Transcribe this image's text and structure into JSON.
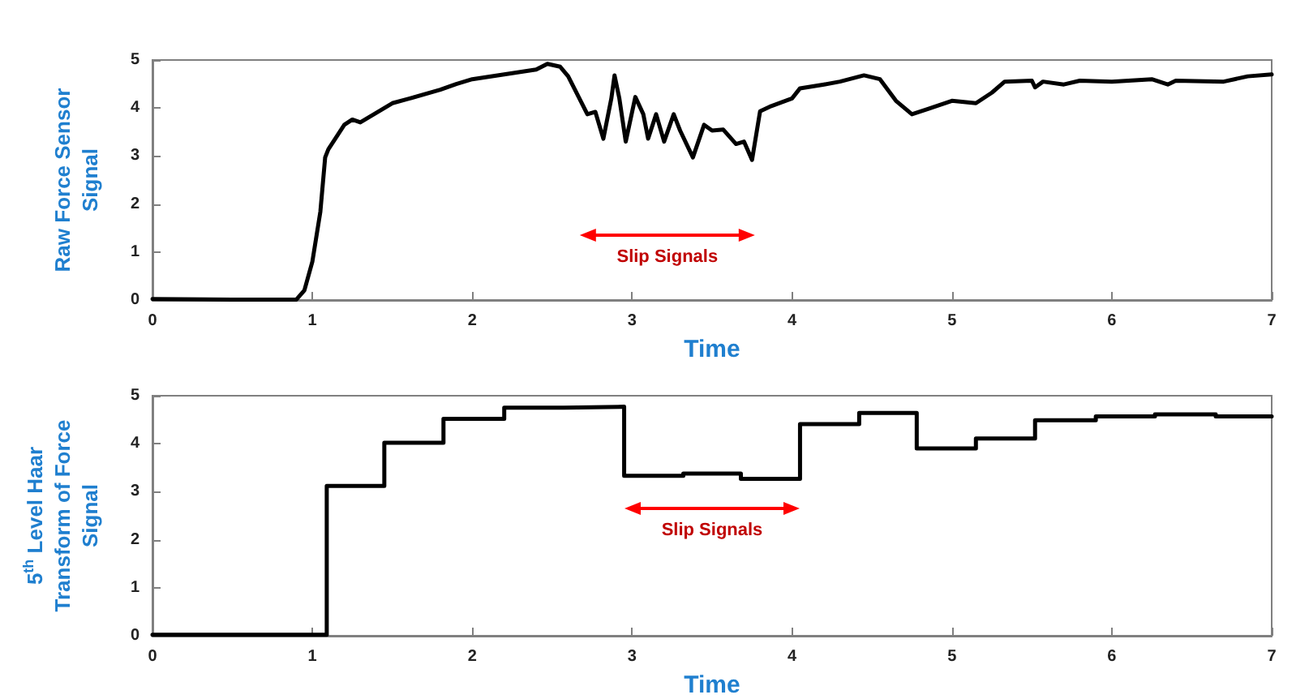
{
  "chart_data": [
    {
      "type": "line",
      "xlabel": "Time",
      "ylabel": "Raw Force Sensor Signal",
      "color": "#000000",
      "marker": "none",
      "xlim": [
        0,
        7
      ],
      "ylim": [
        0,
        5
      ],
      "xticks": [
        0,
        1,
        2,
        3,
        4,
        5,
        6,
        7
      ],
      "yticks": [
        0,
        1,
        2,
        3,
        4,
        5
      ],
      "x": [
        0,
        0.5,
        0.9,
        0.95,
        1.0,
        1.05,
        1.08,
        1.1,
        1.2,
        1.25,
        1.3,
        1.5,
        1.6,
        1.8,
        1.9,
        2.0,
        2.2,
        2.4,
        2.47,
        2.55,
        2.6,
        2.67,
        2.72,
        2.77,
        2.82,
        2.87,
        2.89,
        2.92,
        2.96,
        3.02,
        3.07,
        3.1,
        3.15,
        3.2,
        3.26,
        3.3,
        3.38,
        3.45,
        3.5,
        3.57,
        3.65,
        3.7,
        3.75,
        3.8,
        3.87,
        4.0,
        4.05,
        4.2,
        4.3,
        4.45,
        4.55,
        4.65,
        4.75,
        4.85,
        5.0,
        5.15,
        5.25,
        5.33,
        5.5,
        5.52,
        5.57,
        5.7,
        5.8,
        6.0,
        6.25,
        6.35,
        6.4,
        6.7,
        6.85,
        7.0
      ],
      "values": [
        0.02,
        0.01,
        0.01,
        0.2,
        0.8,
        1.84,
        2.97,
        3.14,
        3.65,
        3.76,
        3.7,
        4.1,
        4.19,
        4.38,
        4.5,
        4.6,
        4.7,
        4.8,
        4.92,
        4.86,
        4.66,
        4.2,
        3.87,
        3.92,
        3.36,
        4.2,
        4.68,
        4.2,
        3.3,
        4.23,
        3.87,
        3.36,
        3.87,
        3.3,
        3.87,
        3.53,
        2.97,
        3.65,
        3.53,
        3.55,
        3.25,
        3.3,
        2.92,
        3.93,
        4.04,
        4.2,
        4.41,
        4.49,
        4.55,
        4.68,
        4.6,
        4.15,
        3.87,
        3.98,
        4.15,
        4.1,
        4.32,
        4.55,
        4.57,
        4.43,
        4.55,
        4.49,
        4.57,
        4.55,
        4.6,
        4.49,
        4.57,
        4.55,
        4.66,
        4.7
      ],
      "annotations": [
        "Slip Signals"
      ]
    },
    {
      "type": "step",
      "xlabel": "Time",
      "ylabel": "5$^{th}$ Level Haar Transform of Force Signal",
      "color": "#000000",
      "marker": "none",
      "xlim": [
        0,
        7
      ],
      "ylim": [
        0,
        5
      ],
      "xticks": [
        0,
        1,
        2,
        3,
        4,
        5,
        6,
        7
      ],
      "yticks": [
        0,
        1,
        2,
        3,
        4,
        5
      ],
      "x": [
        0,
        1.09,
        1.45,
        1.82,
        2.2,
        2.57,
        2.95,
        3.32,
        3.68,
        4.05,
        4.42,
        4.78,
        5.15,
        5.52,
        5.9,
        6.27,
        6.65,
        7.0
      ],
      "values": [
        0.02,
        3.12,
        4.02,
        4.52,
        4.75,
        4.77,
        3.33,
        3.38,
        3.27,
        4.41,
        4.64,
        3.9,
        4.11,
        4.49,
        4.57,
        4.61,
        4.57,
        4.57
      ],
      "annotations": [
        "Slip Signals"
      ]
    }
  ]
}
